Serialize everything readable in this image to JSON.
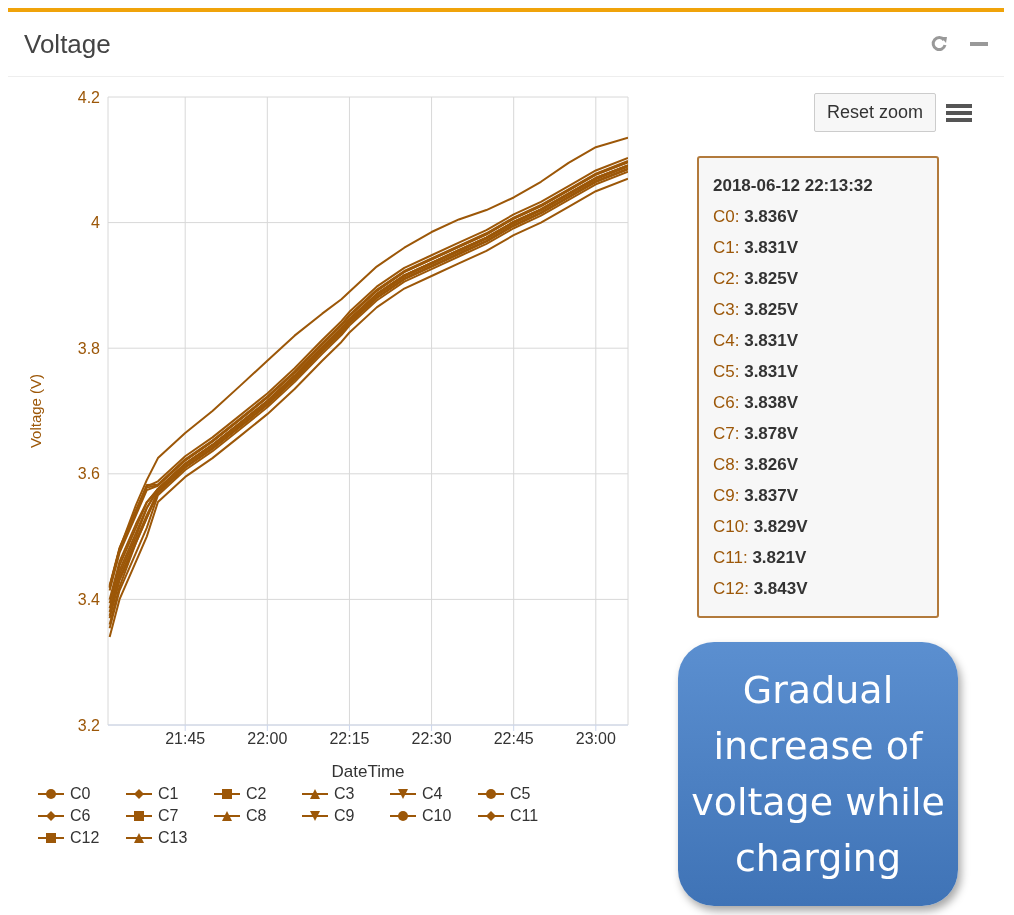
{
  "chart_data": {
    "type": "line",
    "title": "Voltage",
    "xlabel": "DateTime",
    "ylabel": "Voltage (V)",
    "x": [
      21.52,
      21.55,
      21.6,
      21.633,
      21.667,
      21.75,
      21.833,
      21.917,
      22.0,
      22.083,
      22.167,
      22.2256,
      22.25,
      22.333,
      22.417,
      22.5,
      22.583,
      22.667,
      22.75,
      22.833,
      22.917,
      23.0,
      23.098
    ],
    "xlim": [
      21.515,
      23.098
    ],
    "xticks": [
      {
        "value": 21.75,
        "label": "21:45"
      },
      {
        "value": 22.0,
        "label": "22:00"
      },
      {
        "value": 22.25,
        "label": "22:15"
      },
      {
        "value": 22.5,
        "label": "22:30"
      },
      {
        "value": 22.75,
        "label": "22:45"
      },
      {
        "value": 23.0,
        "label": "23:00"
      }
    ],
    "ylim": [
      3.2,
      4.2
    ],
    "yticks": [
      3.2,
      3.4,
      3.6,
      3.8,
      4,
      4.2
    ],
    "grid": true,
    "legend": "bottom",
    "series": [
      {
        "name": "C0",
        "color": "#9c5708",
        "values": [
          3.414,
          3.474,
          3.534,
          3.574,
          3.581,
          3.621,
          3.651,
          3.686,
          3.721,
          3.761,
          3.806,
          3.836,
          3.851,
          3.891,
          3.921,
          3.941,
          3.961,
          3.981,
          4.006,
          4.026,
          4.051,
          4.076,
          4.096
        ]
      },
      {
        "name": "C1",
        "color": "#9c5708",
        "values": [
          3.394,
          3.454,
          3.514,
          3.554,
          3.576,
          3.616,
          3.646,
          3.681,
          3.716,
          3.756,
          3.801,
          3.831,
          3.846,
          3.886,
          3.916,
          3.936,
          3.956,
          3.976,
          4.001,
          4.021,
          4.046,
          4.071,
          4.091
        ]
      },
      {
        "name": "C2",
        "color": "#9c5708",
        "values": [
          3.37,
          3.43,
          3.49,
          3.53,
          3.57,
          3.61,
          3.64,
          3.675,
          3.71,
          3.75,
          3.795,
          3.825,
          3.84,
          3.88,
          3.91,
          3.93,
          3.95,
          3.97,
          3.995,
          4.015,
          4.04,
          4.065,
          4.085
        ]
      },
      {
        "name": "C3",
        "color": "#9c5708",
        "values": [
          3.36,
          3.42,
          3.49,
          3.53,
          3.57,
          3.61,
          3.64,
          3.675,
          3.71,
          3.75,
          3.795,
          3.825,
          3.84,
          3.88,
          3.91,
          3.93,
          3.95,
          3.97,
          3.995,
          4.015,
          4.04,
          4.065,
          4.085
        ]
      },
      {
        "name": "C4",
        "color": "#9c5708",
        "values": [
          3.4,
          3.46,
          3.52,
          3.555,
          3.576,
          3.616,
          3.646,
          3.681,
          3.716,
          3.756,
          3.801,
          3.831,
          3.846,
          3.886,
          3.916,
          3.936,
          3.956,
          3.976,
          4.001,
          4.021,
          4.046,
          4.071,
          4.091
        ]
      },
      {
        "name": "C5",
        "color": "#9c5708",
        "values": [
          3.38,
          3.44,
          3.5,
          3.545,
          3.576,
          3.616,
          3.646,
          3.681,
          3.716,
          3.756,
          3.801,
          3.831,
          3.846,
          3.886,
          3.916,
          3.936,
          3.956,
          3.976,
          4.001,
          4.021,
          4.046,
          4.071,
          4.091
        ]
      },
      {
        "name": "C6",
        "color": "#9c5708",
        "values": [
          3.422,
          3.482,
          3.542,
          3.582,
          3.583,
          3.623,
          3.653,
          3.688,
          3.723,
          3.763,
          3.808,
          3.838,
          3.853,
          3.893,
          3.923,
          3.943,
          3.963,
          3.983,
          4.008,
          4.028,
          4.053,
          4.078,
          4.098
        ]
      },
      {
        "name": "C7",
        "color": "#9c5708",
        "values": [
          3.42,
          3.48,
          3.55,
          3.59,
          3.625,
          3.665,
          3.7,
          3.74,
          3.78,
          3.82,
          3.855,
          3.878,
          3.89,
          3.93,
          3.96,
          3.985,
          4.005,
          4.02,
          4.04,
          4.065,
          4.095,
          4.12,
          4.135
        ]
      },
      {
        "name": "C8",
        "color": "#9c5708",
        "values": [
          3.374,
          3.434,
          3.494,
          3.534,
          3.571,
          3.611,
          3.641,
          3.676,
          3.711,
          3.751,
          3.796,
          3.826,
          3.841,
          3.881,
          3.911,
          3.931,
          3.951,
          3.971,
          3.996,
          4.016,
          4.041,
          4.066,
          4.086
        ]
      },
      {
        "name": "C9",
        "color": "#9c5708",
        "values": [
          3.418,
          3.478,
          3.538,
          3.578,
          3.582,
          3.622,
          3.652,
          3.687,
          3.722,
          3.762,
          3.807,
          3.837,
          3.852,
          3.892,
          3.922,
          3.942,
          3.962,
          3.982,
          4.007,
          4.027,
          4.052,
          4.077,
          4.097
        ]
      },
      {
        "name": "C10",
        "color": "#9c5708",
        "values": [
          3.386,
          3.446,
          3.506,
          3.546,
          3.574,
          3.614,
          3.644,
          3.679,
          3.714,
          3.754,
          3.799,
          3.829,
          3.844,
          3.884,
          3.914,
          3.934,
          3.954,
          3.974,
          3.999,
          4.019,
          4.044,
          4.069,
          4.089
        ]
      },
      {
        "name": "C11",
        "color": "#9c5708",
        "values": [
          3.354,
          3.414,
          3.474,
          3.514,
          3.566,
          3.606,
          3.636,
          3.671,
          3.706,
          3.746,
          3.791,
          3.821,
          3.836,
          3.876,
          3.906,
          3.926,
          3.946,
          3.966,
          3.991,
          4.011,
          4.036,
          4.061,
          4.081
        ]
      },
      {
        "name": "C12",
        "color": "#9c5708",
        "values": [
          3.42,
          3.48,
          3.54,
          3.58,
          3.588,
          3.628,
          3.658,
          3.693,
          3.728,
          3.768,
          3.813,
          3.843,
          3.858,
          3.898,
          3.928,
          3.948,
          3.968,
          3.988,
          4.013,
          4.033,
          4.058,
          4.083,
          4.103
        ]
      },
      {
        "name": "C13",
        "color": "#9c5708",
        "values": [
          3.34,
          3.4,
          3.46,
          3.5,
          3.555,
          3.595,
          3.625,
          3.66,
          3.695,
          3.735,
          3.78,
          3.81,
          3.825,
          3.865,
          3.895,
          3.915,
          3.935,
          3.955,
          3.98,
          4.0,
          4.025,
          4.05,
          4.07
        ]
      }
    ],
    "annotations": [
      "Reset zoom",
      "2018-06-12 22:13:32",
      "C0: 3.836V",
      "C1: 3.831V",
      "C2: 3.825V",
      "C3: 3.825V",
      "C4: 3.831V",
      "C5: 3.831V",
      "C6: 3.838V",
      "C7: 3.878V",
      "C8: 3.826V",
      "C9: 3.837V",
      "C10: 3.829V",
      "C11: 3.821V",
      "C12: 3.843V",
      "Gradual increase of voltage while charging"
    ]
  }
}
